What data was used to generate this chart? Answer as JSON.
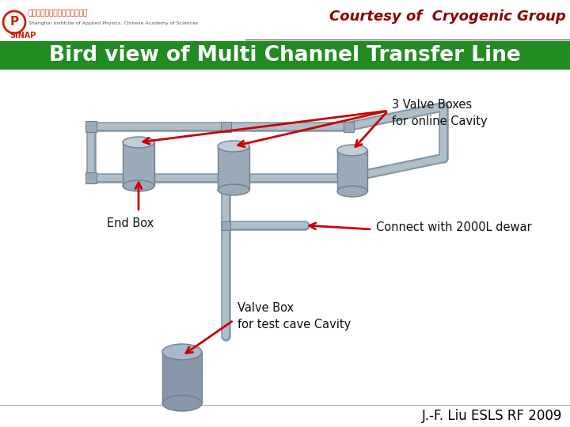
{
  "bg_color": "#f0f0f0",
  "title_bar_color": "#228B22",
  "title_text": "Bird view of Multi Channel Transfer Line",
  "title_color": "#ffffff",
  "title_fontsize": 19,
  "title_fontstyle": "normal",
  "courtesy_text": "Courtesy of  Cryogenic Group",
  "courtesy_color": "#8B0000",
  "courtesy_fontsize": 13,
  "footer_text": "J.-F. Liu ESLS RF 2009",
  "footer_color": "#000000",
  "footer_fontsize": 12,
  "label_end_box": "End Box",
  "label_valve_boxes": "3 Valve Boxes\nfor online Cavity",
  "label_connect": "Connect with 2000L dewar",
  "label_valve_box_test": "Valve Box\nfor test cave Cavity",
  "arrow_color": "#cc0000",
  "text_color": "#111111",
  "pipe_fill": "#b0bec8",
  "pipe_edge": "#8096a8",
  "pipe_lw": 6,
  "cyl_fill": "#9aaab8",
  "cyl_top": "#c0ccd8",
  "cyl_edge": "#708090",
  "header_line_color": "#666666",
  "sinap_color": "#cc2200",
  "sinap_text": "SINAP",
  "inst_cn": "中国科学院上海应用物理研究所",
  "inst_en": "Shanghai Institute of Applied Physics, Chinese Academy of Sciences"
}
